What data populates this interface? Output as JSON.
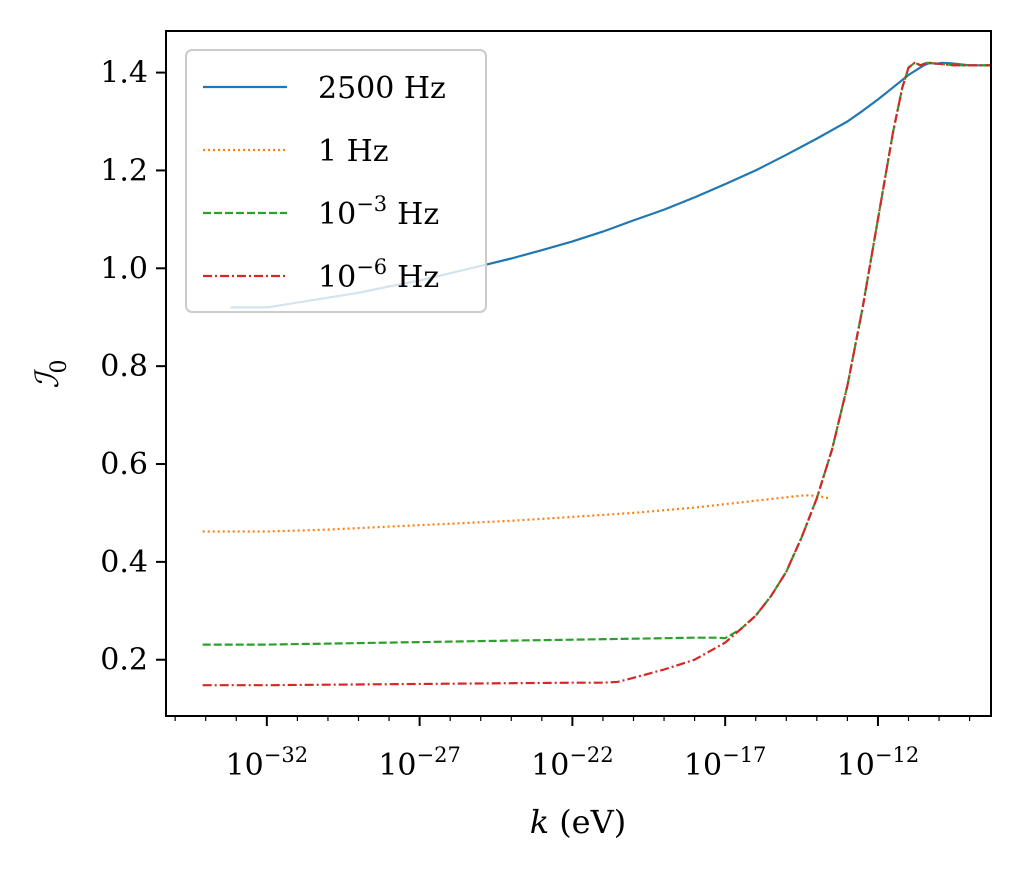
{
  "chart_data": {
    "type": "line",
    "title": "",
    "xlabel": "k (eV)",
    "xlabel_var": "k",
    "xlabel_unit": "(eV)",
    "ylabel": "ℐ",
    "ylabel_sub": "0",
    "xscale": "log",
    "xlim_log10": [
      -35.3,
      -8.3
    ],
    "ylim": [
      0.085,
      1.485
    ],
    "x_ticks": [
      {
        "label_base": "10",
        "label_exp": "−32",
        "log10": -32
      },
      {
        "label_base": "10",
        "label_exp": "−27",
        "log10": -27
      },
      {
        "label_base": "10",
        "label_exp": "−22",
        "log10": -22
      },
      {
        "label_base": "10",
        "label_exp": "−17",
        "log10": -17
      },
      {
        "label_base": "10",
        "label_exp": "−12",
        "log10": -12
      }
    ],
    "y_ticks": [
      {
        "label": "0.2",
        "value": 0.2
      },
      {
        "label": "0.4",
        "value": 0.4
      },
      {
        "label": "0.6",
        "value": 0.6
      },
      {
        "label": "0.8",
        "value": 0.8
      },
      {
        "label": "1.0",
        "value": 1.0
      },
      {
        "label": "1.2",
        "value": 1.2
      },
      {
        "label": "1.4",
        "value": 1.4
      }
    ],
    "grid": false,
    "legend_position": "upper-left",
    "series": [
      {
        "name": "2500 Hz",
        "label_main": "2500 Hz",
        "label_exp": "",
        "label_unit": "",
        "color": "#1f77b4",
        "dash": "",
        "points": [
          [
            -33.2,
            0.92
          ],
          [
            -32,
            0.92
          ],
          [
            -31.9,
            0.921
          ],
          [
            -31,
            0.93
          ],
          [
            -30,
            0.94
          ],
          [
            -29,
            0.95
          ],
          [
            -28,
            0.963
          ],
          [
            -27,
            0.975
          ],
          [
            -26,
            0.99
          ],
          [
            -25,
            1.005
          ],
          [
            -24,
            1.02
          ],
          [
            -23,
            1.037
          ],
          [
            -22,
            1.055
          ],
          [
            -21,
            1.075
          ],
          [
            -20,
            1.098
          ],
          [
            -19,
            1.12
          ],
          [
            -18,
            1.145
          ],
          [
            -17,
            1.172
          ],
          [
            -16,
            1.2
          ],
          [
            -15,
            1.232
          ],
          [
            -14,
            1.265
          ],
          [
            -13,
            1.3
          ],
          [
            -12.5,
            1.322
          ],
          [
            -12,
            1.345
          ],
          [
            -11.5,
            1.37
          ],
          [
            -11,
            1.395
          ],
          [
            -10.5,
            1.415
          ],
          [
            -10.3,
            1.42
          ],
          [
            -10.1,
            1.418
          ],
          [
            -9.9,
            1.42
          ],
          [
            -9.6,
            1.419
          ],
          [
            -9,
            1.415
          ],
          [
            -8.3,
            1.415
          ]
        ]
      },
      {
        "name": "1 Hz",
        "label_main": "1 Hz",
        "label_exp": "",
        "label_unit": "",
        "color": "#ff7f0e",
        "dash": "2,3",
        "points": [
          [
            -34.1,
            0.462
          ],
          [
            -32,
            0.462
          ],
          [
            -31,
            0.464
          ],
          [
            -30,
            0.466
          ],
          [
            -28,
            0.472
          ],
          [
            -26,
            0.478
          ],
          [
            -24,
            0.484
          ],
          [
            -22,
            0.492
          ],
          [
            -20,
            0.5
          ],
          [
            -18,
            0.511
          ],
          [
            -16,
            0.525
          ],
          [
            -15,
            0.532
          ],
          [
            -14.4,
            0.536
          ],
          [
            -14,
            0.535
          ],
          [
            -13.6,
            0.53
          ]
        ]
      },
      {
        "name": "10^-3 Hz",
        "label_main": "10",
        "label_exp": "−3",
        "label_unit": "Hz",
        "color": "#2ca02c",
        "dash": "8,3",
        "points": [
          [
            -34.1,
            0.231
          ],
          [
            -32,
            0.231
          ],
          [
            -30,
            0.233
          ],
          [
            -28,
            0.235
          ],
          [
            -26,
            0.237
          ],
          [
            -24,
            0.239
          ],
          [
            -22,
            0.241
          ],
          [
            -20,
            0.243
          ],
          [
            -18,
            0.245
          ],
          [
            -17.3,
            0.245
          ],
          [
            -17,
            0.244
          ],
          [
            -16.5,
            0.262
          ],
          [
            -16,
            0.29
          ],
          [
            -15.5,
            0.33
          ],
          [
            -15,
            0.38
          ],
          [
            -14.5,
            0.45
          ],
          [
            -14,
            0.53
          ],
          [
            -13.5,
            0.63
          ],
          [
            -13,
            0.76
          ],
          [
            -12.5,
            0.92
          ],
          [
            -12,
            1.1
          ],
          [
            -11.5,
            1.28
          ],
          [
            -11.2,
            1.37
          ],
          [
            -11,
            1.41
          ],
          [
            -10.8,
            1.42
          ],
          [
            -10.6,
            1.415
          ],
          [
            -10.4,
            1.42
          ],
          [
            -10,
            1.418
          ],
          [
            -9.5,
            1.415
          ],
          [
            -8.3,
            1.415
          ]
        ]
      },
      {
        "name": "10^-6 Hz",
        "label_main": "10",
        "label_exp": "−6",
        "label_unit": "Hz",
        "color": "#d62728",
        "dash": "9,3,2,3",
        "points": [
          [
            -34.1,
            0.148
          ],
          [
            -32,
            0.148
          ],
          [
            -30,
            0.149
          ],
          [
            -28,
            0.15
          ],
          [
            -26,
            0.151
          ],
          [
            -24,
            0.152
          ],
          [
            -22,
            0.153
          ],
          [
            -21,
            0.153
          ],
          [
            -20.5,
            0.155
          ],
          [
            -20,
            0.163
          ],
          [
            -19,
            0.18
          ],
          [
            -18,
            0.2
          ],
          [
            -17,
            0.235
          ],
          [
            -16.5,
            0.262
          ],
          [
            -16,
            0.29
          ],
          [
            -15.5,
            0.33
          ],
          [
            -15,
            0.38
          ],
          [
            -14.5,
            0.45
          ],
          [
            -14,
            0.53
          ],
          [
            -13.5,
            0.63
          ],
          [
            -13,
            0.76
          ],
          [
            -12.5,
            0.92
          ],
          [
            -12,
            1.1
          ],
          [
            -11.5,
            1.28
          ],
          [
            -11.2,
            1.37
          ],
          [
            -11,
            1.41
          ],
          [
            -10.8,
            1.42
          ],
          [
            -10.6,
            1.415
          ],
          [
            -10.4,
            1.42
          ],
          [
            -10,
            1.418
          ],
          [
            -9.5,
            1.415
          ],
          [
            -8.3,
            1.415
          ]
        ]
      }
    ]
  }
}
